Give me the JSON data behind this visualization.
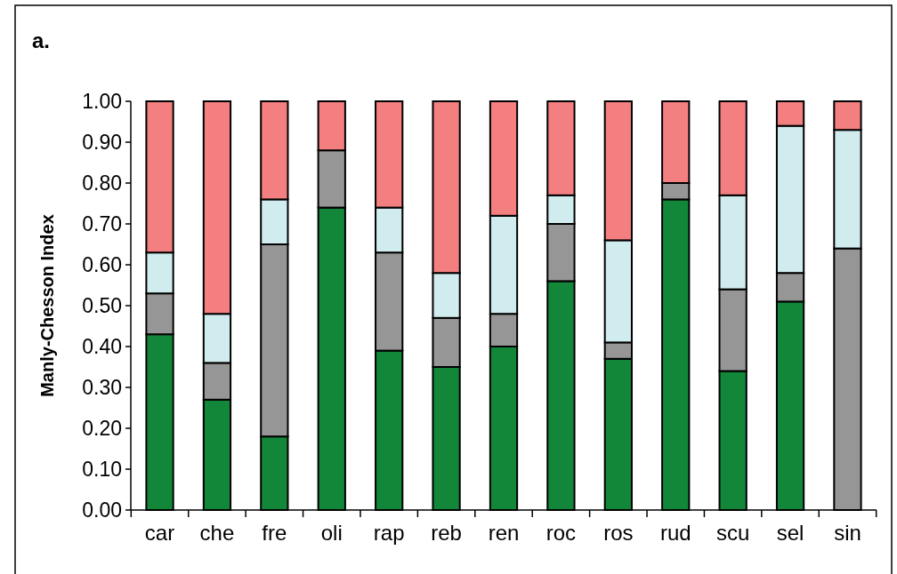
{
  "chart_data": {
    "type": "bar",
    "stacked": true,
    "ylabel": "Manly-Chesson Index",
    "annotations": [
      "a."
    ],
    "categories": [
      "car",
      "che",
      "fre",
      "oli",
      "rap",
      "reb",
      "ren",
      "roc",
      "ros",
      "rud",
      "scu",
      "sel",
      "sin"
    ],
    "series": [
      {
        "color": "#12873a",
        "values": [
          0.43,
          0.27,
          0.18,
          0.74,
          0.39,
          0.35,
          0.4,
          0.56,
          0.37,
          0.76,
          0.34,
          0.51,
          0
        ]
      },
      {
        "color": "#969696",
        "values": [
          0.1,
          0.09,
          0.47,
          0.14,
          0.24,
          0.12,
          0.08,
          0.14,
          0.04,
          0.04,
          0.2,
          0.07,
          0.64
        ]
      },
      {
        "color": "#d0ecee",
        "values": [
          0.1,
          0.12,
          0.11,
          0,
          0.11,
          0.11,
          0.24,
          0.07,
          0.25,
          0,
          0.23,
          0.36,
          0.29
        ]
      },
      {
        "color": "#f47f80",
        "values": [
          0.37,
          0.52,
          0.24,
          0.12,
          0.26,
          0.42,
          0.28,
          0.23,
          0.34,
          0.2,
          0.23,
          0.06,
          0.07
        ]
      }
    ],
    "ylim": [
      0,
      1
    ],
    "yticks": [
      {
        "value": 0,
        "label": "0.00"
      },
      {
        "value": 0.1,
        "label": "0.10"
      },
      {
        "value": 0.2,
        "label": "0.20"
      },
      {
        "value": 0.3,
        "label": "0.30"
      },
      {
        "value": 0.4,
        "label": "0.40"
      },
      {
        "value": 0.5,
        "label": "0.50"
      },
      {
        "value": 0.6,
        "label": "0.60"
      },
      {
        "value": 0.7,
        "label": "0.70"
      },
      {
        "value": 0.8,
        "label": "0.80"
      },
      {
        "value": 0.9,
        "label": "0.90"
      },
      {
        "value": 1,
        "label": "1.00"
      }
    ],
    "grid": false
  }
}
